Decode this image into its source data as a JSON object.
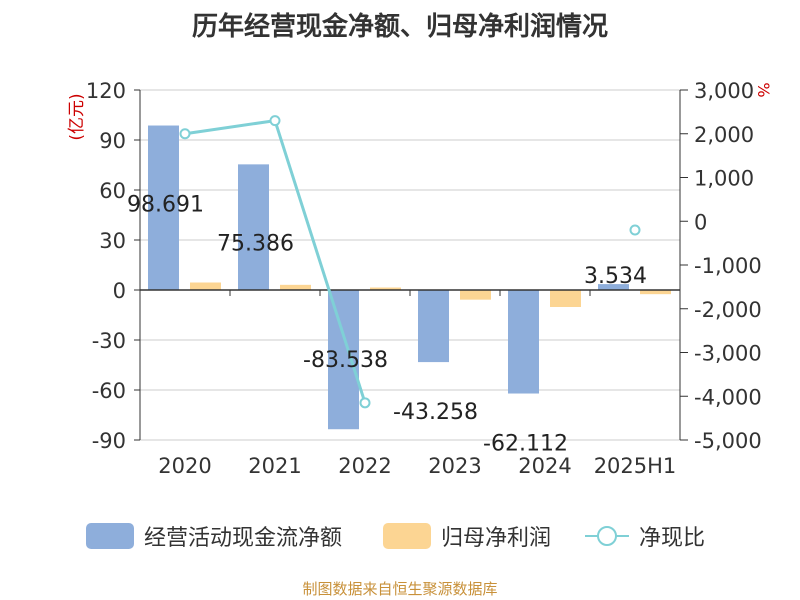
{
  "title": "历年经营现金净额、归母净利润情况",
  "source": "制图数据来自恒生聚源数据库",
  "colors": {
    "cash_flow": "#8eaedb",
    "net_profit": "#fcd593",
    "ratio": "#7fd0d6",
    "axis_unit": "#cc0000",
    "grid": "#cccccc",
    "text": "#333333"
  },
  "chart_data": {
    "type": "bar",
    "title": "历年经营现金净额、归母净利润情况",
    "categories": [
      "2020",
      "2021",
      "2022",
      "2023",
      "2024",
      "2025H1"
    ],
    "y_left": {
      "unit": "(亿元)",
      "ticks": [
        "120",
        "90",
        "60",
        "30",
        "0",
        "-30",
        "-60",
        "-90"
      ],
      "range": [
        -90,
        120
      ]
    },
    "y_right": {
      "unit": "%",
      "ticks": [
        "3,000",
        "2,000",
        "1,000",
        "0",
        "-1,000",
        "-2,000",
        "-3,000",
        "-4,000",
        "-5,000"
      ],
      "range": [
        -5000,
        3000
      ]
    },
    "grid": true,
    "legend_position": "bottom",
    "series": [
      {
        "name": "经营活动现金流净额",
        "type": "bar",
        "axis": "left",
        "values": [
          98.691,
          75.386,
          -83.538,
          -43.258,
          -62.112,
          3.534
        ],
        "labels": [
          "98.691",
          "75.386",
          "-83.538",
          "-43.258",
          "-62.112",
          "3.534"
        ]
      },
      {
        "name": "归母净利润",
        "type": "bar",
        "axis": "left",
        "values": [
          4.5,
          3.1,
          1.5,
          -5.8,
          -10.2,
          -2.5
        ]
      },
      {
        "name": "净现比",
        "type": "line",
        "axis": "right",
        "values": [
          2000,
          2300,
          -4150,
          null,
          null,
          -200
        ]
      }
    ]
  }
}
